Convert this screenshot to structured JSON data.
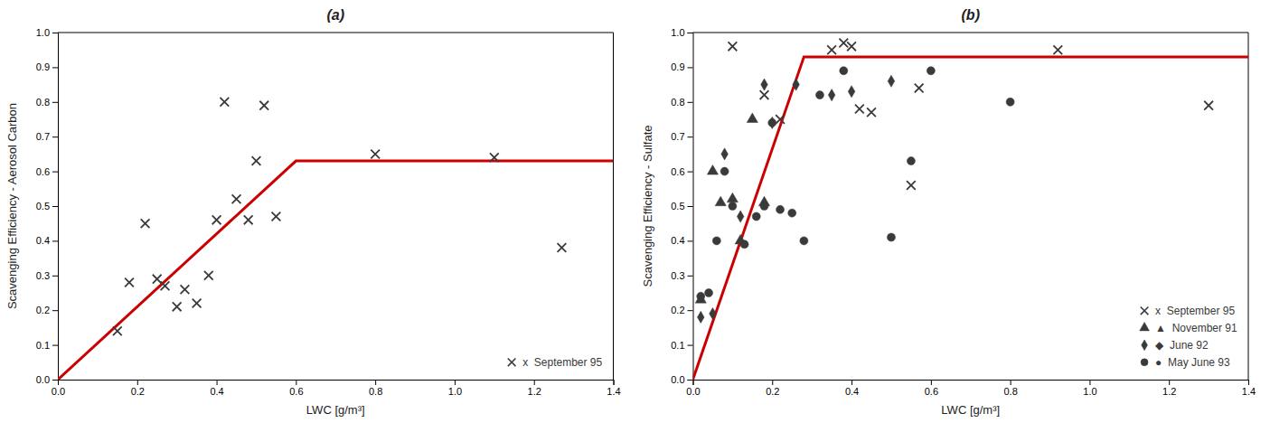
{
  "chart_data": [
    {
      "type": "scatter",
      "title": "(a)",
      "xlabel": "LWC [g/m³]",
      "ylabel": "Scavenging Efficiency - Aerosol Carbon",
      "xlim": [
        0.0,
        1.4
      ],
      "ylim": [
        0.0,
        1.0
      ],
      "xticks": [
        {
          "value": 0.0,
          "label": "0.0"
        },
        0.2,
        0.4,
        0.6,
        0.8,
        {
          "value": 1.0,
          "label": "1.0"
        },
        1.2,
        1.4
      ],
      "yticks": [
        {
          "value": 0.0,
          "label": "0.0"
        },
        0.1,
        0.2,
        0.3,
        0.4,
        0.5,
        0.6,
        0.7,
        0.8,
        0.9,
        {
          "value": 1.0,
          "label": "1.0"
        }
      ],
      "grid": false,
      "legend": "lower right",
      "series": [
        {
          "type": "line",
          "color": "#cc0000",
          "x": [
            0.0,
            0.6,
            1.4
          ],
          "values": [
            0.0,
            0.63,
            0.63
          ]
        },
        {
          "type": "scatter",
          "name": "x  September 95",
          "marker": "x",
          "color": "#3a3a3a",
          "x": [
            0.15,
            0.18,
            0.22,
            0.25,
            0.27,
            0.3,
            0.32,
            0.35,
            0.38,
            0.4,
            0.42,
            0.45,
            0.48,
            0.5,
            0.52,
            0.55,
            0.8,
            1.1,
            1.27
          ],
          "values": [
            0.14,
            0.28,
            0.45,
            0.29,
            0.27,
            0.21,
            0.26,
            0.22,
            0.3,
            0.46,
            0.8,
            0.52,
            0.46,
            0.63,
            0.79,
            0.47,
            0.65,
            0.64,
            0.38
          ]
        }
      ]
    },
    {
      "type": "scatter",
      "title": "(b)",
      "xlabel": "LWC [g/m³]",
      "ylabel": "Scavenging Efficiency - Sulfate",
      "xlim": [
        0.0,
        1.4
      ],
      "ylim": [
        0.0,
        1.0
      ],
      "xticks": [
        {
          "value": 0.0,
          "label": "0.0"
        },
        0.2,
        0.4,
        0.6,
        0.8,
        {
          "value": 1.0,
          "label": "1.0"
        },
        1.2,
        1.4
      ],
      "yticks": [
        {
          "value": 0.0,
          "label": "0.0"
        },
        0.1,
        0.2,
        0.3,
        0.4,
        0.5,
        0.6,
        0.7,
        0.8,
        0.9,
        {
          "value": 1.0,
          "label": "1.0"
        }
      ],
      "grid": false,
      "legend": "lower right",
      "series": [
        {
          "type": "line",
          "color": "#cc0000",
          "x": [
            0.0,
            0.28,
            1.4
          ],
          "values": [
            0.0,
            0.93,
            0.93
          ]
        },
        {
          "type": "scatter",
          "name": "x  September 95",
          "marker": "x",
          "color": "#3a3a3a",
          "x": [
            0.1,
            0.18,
            0.22,
            0.35,
            0.38,
            0.4,
            0.42,
            0.45,
            0.55,
            0.57,
            0.92,
            1.3
          ],
          "values": [
            0.96,
            0.82,
            0.75,
            0.95,
            0.97,
            0.96,
            0.78,
            0.77,
            0.56,
            0.84,
            0.95,
            0.79
          ]
        },
        {
          "type": "scatter",
          "name": "▲  November 91",
          "marker": "triangle",
          "color": "#3a3a3a",
          "x": [
            0.02,
            0.05,
            0.07,
            0.1,
            0.12,
            0.15,
            0.18
          ],
          "values": [
            0.23,
            0.6,
            0.51,
            0.52,
            0.4,
            0.75,
            0.51
          ]
        },
        {
          "type": "scatter",
          "name": "◆  June 92",
          "marker": "diamond",
          "color": "#3a3a3a",
          "x": [
            0.02,
            0.05,
            0.08,
            0.12,
            0.18,
            0.2,
            0.26,
            0.35,
            0.4,
            0.5
          ],
          "values": [
            0.18,
            0.19,
            0.65,
            0.47,
            0.85,
            0.74,
            0.85,
            0.82,
            0.83,
            0.86
          ]
        },
        {
          "type": "scatter",
          "name": "●  May June 93",
          "marker": "circle",
          "color": "#3a3a3a",
          "x": [
            0.02,
            0.04,
            0.06,
            0.08,
            0.1,
            0.13,
            0.16,
            0.18,
            0.2,
            0.22,
            0.25,
            0.28,
            0.32,
            0.38,
            0.5,
            0.55,
            0.6,
            0.8
          ],
          "values": [
            0.24,
            0.25,
            0.4,
            0.6,
            0.5,
            0.39,
            0.47,
            0.5,
            0.74,
            0.49,
            0.48,
            0.4,
            0.82,
            0.89,
            0.41,
            0.63,
            0.89,
            0.8
          ]
        }
      ]
    }
  ]
}
